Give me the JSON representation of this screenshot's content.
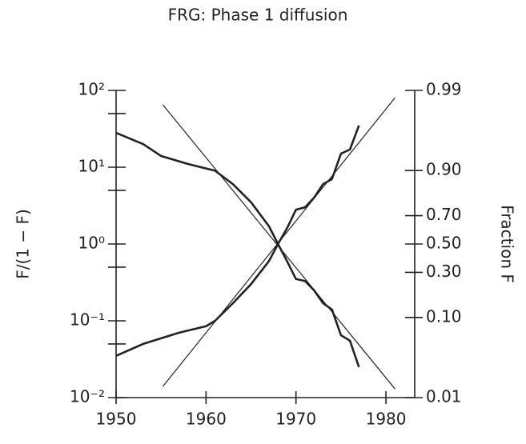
{
  "chart_data": {
    "type": "line",
    "title": "FRG: Phase 1 diffusion",
    "ylabel": "F/(1 − F)",
    "y2label": "Fraction F",
    "yscale": "log",
    "y2scale": "logit",
    "xlim": [
      1950,
      1983.2
    ],
    "xticks": [
      1950,
      1960,
      1970,
      1980
    ],
    "ylim": [
      0.01,
      100
    ],
    "yticks": [
      {
        "value": 100,
        "label": "10²"
      },
      {
        "value": 10,
        "label": "10¹"
      },
      {
        "value": 1,
        "label": "10⁰"
      },
      {
        "value": 0.1,
        "label": "10⁻¹"
      },
      {
        "value": 0.01,
        "label": "10⁻²"
      }
    ],
    "yminorticks": [
      50,
      5,
      0.5,
      0.05
    ],
    "y2lim": [
      0.01,
      0.99
    ],
    "y2ticks": [
      0.99,
      {
        "value": 0.9,
        "label": "0.90"
      },
      {
        "value": 0.7,
        "label": "0.70"
      },
      {
        "value": 0.5,
        "label": "0.50"
      },
      {
        "value": 0.3,
        "label": "0.30"
      },
      {
        "value": 0.1,
        "label": "0.10"
      },
      0.01
    ],
    "series": [
      {
        "color": "#222222",
        "x": [
          1950,
          1953,
          1957,
          1960,
          1961,
          1963,
          1965,
          1967,
          1968,
          1969,
          1970,
          1971,
          1972,
          1973,
          1974,
          1975,
          1976,
          1977
        ],
        "values": [
          0.035,
          0.05,
          0.07,
          0.085,
          0.1,
          0.17,
          0.3,
          0.6,
          1.0,
          1.6,
          2.8,
          3.0,
          4.0,
          6.0,
          7.0,
          15,
          17,
          35
        ]
      },
      {
        "color": "#222222",
        "x": [
          1950,
          1953,
          1955,
          1958,
          1961,
          1963,
          1965,
          1967,
          1968,
          1969,
          1970,
          1971,
          1972,
          1973,
          1974,
          1975,
          1976,
          1977
        ],
        "values": [
          28,
          20,
          14,
          11,
          9,
          6,
          3.5,
          1.7,
          1.0,
          0.6,
          0.35,
          0.33,
          0.25,
          0.17,
          0.14,
          0.065,
          0.055,
          0.025
        ]
      },
      {
        "color": "#222222",
        "x": [
          1955.2,
          1981
        ],
        "values": [
          0.014,
          80
        ]
      },
      {
        "color": "#222222",
        "x": [
          1955.2,
          1981
        ],
        "values": [
          65,
          0.013
        ]
      }
    ]
  }
}
